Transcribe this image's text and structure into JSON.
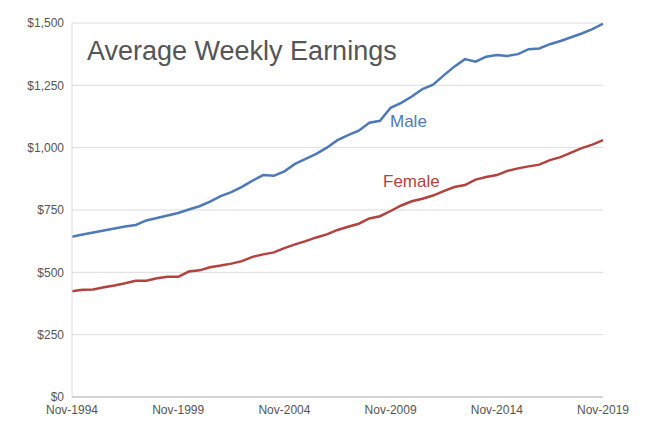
{
  "chart_data": {
    "type": "line",
    "title": "Average Weekly Earnings",
    "categories": [
      "Nov-1994",
      null,
      null,
      null,
      null,
      null,
      null,
      null,
      null,
      null,
      "Nov-1999",
      null,
      null,
      null,
      null,
      null,
      null,
      null,
      null,
      null,
      "Nov-2004",
      null,
      null,
      null,
      null,
      null,
      null,
      null,
      null,
      null,
      "Nov-2009",
      null,
      null,
      null,
      null,
      null,
      null,
      null,
      null,
      null,
      "Nov-2014",
      null,
      null,
      null,
      null,
      null,
      null,
      null,
      null,
      null,
      "Nov-2019"
    ],
    "series": [
      {
        "name": "Male",
        "color": "#4e79b8",
        "values": [
          643,
          652,
          660,
          668,
          676,
          684,
          690,
          708,
          718,
          728,
          738,
          752,
          765,
          784,
          806,
          822,
          843,
          868,
          890,
          887,
          905,
          935,
          955,
          975,
          1000,
          1030,
          1050,
          1068,
          1100,
          1108,
          1160,
          1180,
          1205,
          1235,
          1253,
          1290,
          1325,
          1355,
          1345,
          1365,
          1372,
          1368,
          1375,
          1395,
          1398,
          1415,
          1428,
          1443,
          1458,
          1475,
          1497
        ]
      },
      {
        "name": "Female",
        "color": "#b3423f",
        "values": [
          424,
          430,
          431,
          440,
          447,
          456,
          466,
          466,
          476,
          482,
          482,
          503,
          508,
          520,
          527,
          535,
          545,
          562,
          572,
          580,
          597,
          612,
          625,
          640,
          652,
          670,
          683,
          695,
          716,
          725,
          746,
          768,
          785,
          795,
          808,
          826,
          842,
          850,
          872,
          882,
          890,
          907,
          917,
          925,
          932,
          950,
          962,
          980,
          998,
          1012,
          1030
        ]
      }
    ],
    "ylim": [
      0,
      1500
    ],
    "yticks": [
      {
        "value": 0,
        "label": "$0"
      },
      {
        "value": 250,
        "label": "$250"
      },
      {
        "value": 500,
        "label": "$500"
      },
      {
        "value": 750,
        "label": "$750"
      },
      {
        "value": 1000,
        "label": "$1,000"
      },
      {
        "value": 1250,
        "label": "$1,250"
      },
      {
        "value": 1500,
        "label": "$1,500"
      }
    ],
    "grid": true
  }
}
